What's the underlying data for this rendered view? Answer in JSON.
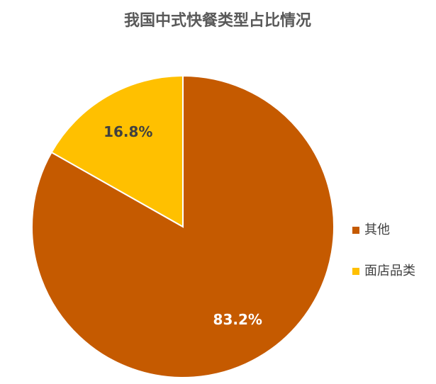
{
  "chart_data": {
    "type": "pie",
    "title": "我国中式快餐类型占比情况",
    "categories": [
      "其他",
      "面店品类"
    ],
    "values": [
      83.2,
      16.8
    ],
    "value_labels": [
      "83.2%",
      "16.8%"
    ],
    "colors": [
      "#c55a00",
      "#ffc000"
    ],
    "legend": "right"
  }
}
